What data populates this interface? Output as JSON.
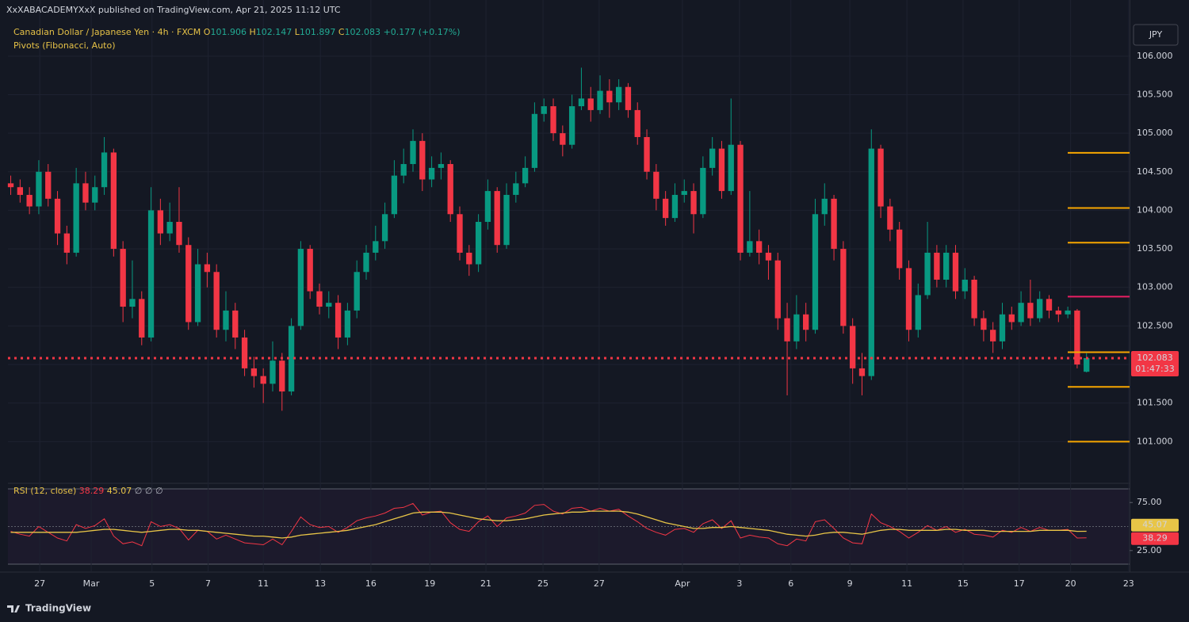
{
  "header": {
    "publisher": "XxXABACADEMYXxX published on TradingView.com, Apr 21, 2025 11:12 UTC",
    "symbol": "Canadian Dollar / Japanese Yen · 4h · FXCM",
    "ohlc_letters": [
      "O",
      "H",
      "L",
      "C"
    ],
    "change": "+0.177 (+0.17%)",
    "indicator": "Pivots (Fibonacci, Auto)",
    "currency": "JPY",
    "countdown": "01:47:33",
    "logo": "TradingView"
  },
  "chart_data": [
    {
      "type": "candlestick",
      "open": [
        104.35,
        104.3,
        104.2,
        104.05,
        104.5,
        104.15,
        103.7,
        103.45,
        104.35,
        104.1,
        104.3,
        104.75,
        103.5,
        102.75,
        102.85,
        102.35,
        104.0,
        103.7,
        103.85,
        103.55,
        102.55,
        103.3,
        103.2,
        102.45,
        102.7,
        102.35,
        101.95,
        101.85,
        101.75,
        102.05,
        101.65,
        102.5,
        103.5,
        102.95,
        102.75,
        102.8,
        102.35,
        102.7,
        103.2,
        103.45,
        103.6,
        103.95,
        104.45,
        104.6,
        104.9,
        104.4,
        104.55,
        104.6,
        103.95,
        103.45,
        103.3,
        103.85,
        104.25,
        103.55,
        104.2,
        104.35,
        104.55,
        105.25,
        105.35,
        105.0,
        104.85,
        105.35,
        105.45,
        105.3,
        105.55,
        105.4,
        105.6,
        105.3,
        104.95,
        104.5,
        104.15,
        103.9,
        104.2,
        104.25,
        103.95,
        104.55,
        104.8,
        104.25,
        104.85,
        103.45,
        103.6,
        103.45,
        103.35,
        102.6,
        102.3,
        102.65,
        102.45,
        103.95,
        104.15,
        103.5,
        102.5,
        101.95,
        101.85,
        104.8,
        104.05,
        103.75,
        103.25,
        102.45,
        102.9,
        103.45,
        103.1,
        103.45,
        102.95,
        103.1,
        102.6,
        102.45,
        102.3,
        102.65,
        102.55,
        102.8,
        102.6,
        102.85,
        102.7,
        102.65,
        102.7,
        101.906
      ],
      "high": [
        104.45,
        104.4,
        104.3,
        104.65,
        104.6,
        104.25,
        103.8,
        104.55,
        104.5,
        104.45,
        104.95,
        104.8,
        103.6,
        103.35,
        102.95,
        104.3,
        104.15,
        104.1,
        104.3,
        103.65,
        103.5,
        103.45,
        103.3,
        102.95,
        102.8,
        102.45,
        102.1,
        101.95,
        102.3,
        102.15,
        102.6,
        103.6,
        103.55,
        103.05,
        102.95,
        102.9,
        102.8,
        103.35,
        103.55,
        103.8,
        104.1,
        104.65,
        104.8,
        105.05,
        105.0,
        104.7,
        104.75,
        104.65,
        104.05,
        103.55,
        103.95,
        104.4,
        104.3,
        104.35,
        104.5,
        104.7,
        105.4,
        105.45,
        105.45,
        105.1,
        105.5,
        105.85,
        105.6,
        105.75,
        105.7,
        105.7,
        105.65,
        105.4,
        105.05,
        104.6,
        104.25,
        104.35,
        104.4,
        104.35,
        104.7,
        104.95,
        104.9,
        105.45,
        104.9,
        104.25,
        103.75,
        103.55,
        103.45,
        102.8,
        102.9,
        102.8,
        104.15,
        104.35,
        104.2,
        103.6,
        102.6,
        102.15,
        105.05,
        104.85,
        104.15,
        103.85,
        103.35,
        103.05,
        103.85,
        103.55,
        103.55,
        103.55,
        103.25,
        103.15,
        102.7,
        102.55,
        102.8,
        102.75,
        102.95,
        103.1,
        102.95,
        102.9,
        102.75,
        102.75,
        102.72,
        102.147
      ],
      "low": [
        104.2,
        104.1,
        103.95,
        103.95,
        104.05,
        103.55,
        103.3,
        103.4,
        104.0,
        104.0,
        104.2,
        103.4,
        102.55,
        102.6,
        102.25,
        102.3,
        103.55,
        103.6,
        103.45,
        102.45,
        102.5,
        103.0,
        102.35,
        102.3,
        102.2,
        101.85,
        101.7,
        101.5,
        101.65,
        101.4,
        101.6,
        102.45,
        102.85,
        102.65,
        102.6,
        102.2,
        102.25,
        102.6,
        103.1,
        103.35,
        103.5,
        103.9,
        104.35,
        104.5,
        104.25,
        104.3,
        104.4,
        103.85,
        103.35,
        103.15,
        103.2,
        103.75,
        103.45,
        103.5,
        104.1,
        104.3,
        104.5,
        105.15,
        104.9,
        104.7,
        104.8,
        105.3,
        105.15,
        105.25,
        105.2,
        105.3,
        105.2,
        104.85,
        104.4,
        104.0,
        103.8,
        103.85,
        104.1,
        103.7,
        103.9,
        104.45,
        104.15,
        104.2,
        103.35,
        103.4,
        103.3,
        103.1,
        102.45,
        101.6,
        102.2,
        102.3,
        102.4,
        103.8,
        103.35,
        102.4,
        101.75,
        101.6,
        101.8,
        103.9,
        103.6,
        103.1,
        102.3,
        102.35,
        102.85,
        103.0,
        103.0,
        102.85,
        102.85,
        102.5,
        102.3,
        102.15,
        102.2,
        102.45,
        102.5,
        102.5,
        102.55,
        102.6,
        102.55,
        102.6,
        101.95,
        101.897
      ],
      "close": [
        104.3,
        104.2,
        104.05,
        104.5,
        104.15,
        103.7,
        103.45,
        104.35,
        104.1,
        104.3,
        104.75,
        103.5,
        102.75,
        102.85,
        102.35,
        104.0,
        103.7,
        103.85,
        103.55,
        102.55,
        103.3,
        103.2,
        102.45,
        102.7,
        102.35,
        101.95,
        101.85,
        101.75,
        102.05,
        101.65,
        102.5,
        103.5,
        102.95,
        102.75,
        102.8,
        102.35,
        102.7,
        103.2,
        103.45,
        103.6,
        103.95,
        104.45,
        104.6,
        104.9,
        104.4,
        104.55,
        104.6,
        103.95,
        103.45,
        103.3,
        103.85,
        104.25,
        103.55,
        104.2,
        104.35,
        104.55,
        105.25,
        105.35,
        105.0,
        104.85,
        105.35,
        105.45,
        105.3,
        105.55,
        105.4,
        105.6,
        105.3,
        104.95,
        104.5,
        104.15,
        103.9,
        104.2,
        104.25,
        103.95,
        104.55,
        104.8,
        104.25,
        104.85,
        103.45,
        103.6,
        103.45,
        103.35,
        102.6,
        102.3,
        102.65,
        102.45,
        103.95,
        104.15,
        103.5,
        102.5,
        101.95,
        101.85,
        104.8,
        104.05,
        103.75,
        103.25,
        102.45,
        102.9,
        103.45,
        103.1,
        103.45,
        102.95,
        103.1,
        102.6,
        102.45,
        102.3,
        102.65,
        102.55,
        102.8,
        102.6,
        102.85,
        102.7,
        102.65,
        102.7,
        102.0,
        102.083
      ],
      "up_color": "#089981",
      "down_color": "#f23645",
      "xlim": [
        -0.3,
        119.6
      ],
      "xticks": [
        {
          "value": 3.1,
          "label": "27"
        },
        {
          "value": 8.6,
          "label": "Mar"
        },
        {
          "value": 15.1,
          "label": "5"
        },
        {
          "value": 21.1,
          "label": "7"
        },
        {
          "value": 27.0,
          "label": "11"
        },
        {
          "value": 33.1,
          "label": "13"
        },
        {
          "value": 38.5,
          "label": "16"
        },
        {
          "value": 44.8,
          "label": "19"
        },
        {
          "value": 50.8,
          "label": "21"
        },
        {
          "value": 56.9,
          "label": "25"
        },
        {
          "value": 62.9,
          "label": "27"
        },
        {
          "value": 71.8,
          "label": "Apr"
        },
        {
          "value": 77.9,
          "label": "3"
        },
        {
          "value": 83.4,
          "label": "6"
        },
        {
          "value": 89.7,
          "label": "9"
        },
        {
          "value": 95.8,
          "label": "11"
        },
        {
          "value": 101.8,
          "label": "15"
        },
        {
          "value": 107.8,
          "label": "17"
        },
        {
          "value": 113.3,
          "label": "20"
        },
        {
          "value": 119.5,
          "label": "23"
        }
      ],
      "ylim": [
        100.51,
        106.44
      ],
      "yticks": [
        {
          "value": 101,
          "label": "101.000"
        },
        {
          "value": 101.5,
          "label": "101.500"
        },
        {
          "value": 102,
          "label": "102.000"
        },
        {
          "value": 102.5,
          "label": "102.500"
        },
        {
          "value": 103,
          "label": "103.000"
        },
        {
          "value": 103.5,
          "label": "103.500"
        },
        {
          "value": 104,
          "label": "104.000"
        },
        {
          "value": 104.5,
          "label": "104.500"
        },
        {
          "value": 105,
          "label": "105.000"
        },
        {
          "value": 105.5,
          "label": "105.500"
        },
        {
          "value": 106,
          "label": "106.000"
        }
      ],
      "grid": true,
      "pivot_levels": [
        104.745,
        104.03,
        103.58,
        102.88,
        102.16,
        101.71,
        101.0
      ],
      "pivot_colors": [
        "#f7a600",
        "#f7a600",
        "#f7a600",
        "#e91e63",
        "#f7a600",
        "#f7a600",
        "#f7a600"
      ],
      "price_line_color": "#f23645"
    },
    {
      "type": "line",
      "title": "RSI (12, close)",
      "ylim": [
        10.8,
        89.2
      ],
      "yticks": [
        {
          "value": 75,
          "label": "75.00"
        },
        {
          "value": 25,
          "label": "25.00"
        }
      ],
      "empty_marks": "∅ ∅ ∅",
      "series": [
        {
          "color": "#f23645",
          "values": [
            45,
            42,
            40,
            50,
            44,
            38,
            35,
            52,
            48,
            51,
            58,
            40,
            32,
            34,
            30,
            55,
            50,
            52,
            48,
            36,
            46,
            45,
            37,
            41,
            37,
            33,
            32,
            31,
            37,
            31,
            45,
            60,
            52,
            49,
            50,
            44,
            49,
            56,
            59,
            61,
            64,
            69,
            70,
            74,
            62,
            65,
            66,
            54,
            47,
            45,
            55,
            61,
            50,
            59,
            61,
            64,
            72,
            73,
            66,
            63,
            69,
            70,
            66,
            69,
            66,
            68,
            61,
            55,
            48,
            44,
            41,
            47,
            48,
            44,
            53,
            57,
            48,
            56,
            38,
            41,
            39,
            38,
            32,
            30,
            37,
            35,
            55,
            57,
            48,
            38,
            33,
            32,
            63,
            54,
            50,
            45,
            38,
            44,
            51,
            46,
            50,
            44,
            47,
            42,
            41,
            39,
            46,
            44,
            49,
            45,
            49,
            46,
            46,
            47,
            38,
            38.29
          ]
        },
        {
          "color": "#e8c547",
          "values": [
            44,
            44,
            44,
            44,
            44,
            44,
            44,
            44,
            45,
            46,
            47,
            47,
            46,
            45,
            44,
            45,
            46,
            47,
            47,
            46,
            46,
            45,
            44,
            43,
            42,
            41,
            40,
            40,
            39,
            38,
            39,
            41,
            42,
            43,
            44,
            45,
            46,
            48,
            50,
            52,
            55,
            58,
            61,
            64,
            65,
            65,
            65,
            64,
            62,
            60,
            58,
            57,
            56,
            56,
            57,
            58,
            60,
            62,
            63,
            64,
            65,
            65,
            66,
            66,
            66,
            66,
            65,
            63,
            60,
            57,
            54,
            52,
            50,
            48,
            48,
            49,
            49,
            50,
            49,
            48,
            47,
            46,
            44,
            42,
            41,
            40,
            41,
            43,
            44,
            44,
            43,
            42,
            44,
            46,
            47,
            47,
            46,
            46,
            46,
            46,
            47,
            47,
            46,
            46,
            46,
            45,
            45,
            45,
            45,
            45,
            46,
            46,
            46,
            46,
            45,
            45.07
          ]
        }
      ]
    }
  ]
}
